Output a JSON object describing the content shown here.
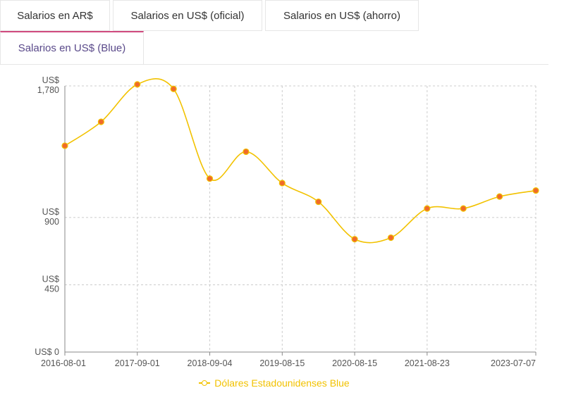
{
  "tabs": [
    {
      "label": "Salarios en AR$",
      "active": false
    },
    {
      "label": "Salarios en US$ (oficial)",
      "active": false
    },
    {
      "label": "Salarios en US$ (ahorro)",
      "active": false
    },
    {
      "label": "Salarios en US$ (Blue)",
      "active": true
    }
  ],
  "colors": {
    "series": "#f2c200",
    "point": "#f06a2a",
    "grid": "#cccccc",
    "axis": "#888888"
  },
  "chart_data": {
    "type": "line",
    "title": "",
    "xlabel": "",
    "ylabel": "",
    "ylim": [
      0,
      1780
    ],
    "y_ticks": [
      {
        "value": 0,
        "line1": "US$ 0",
        "line2": ""
      },
      {
        "value": 450,
        "line1": "US$",
        "line2": "450"
      },
      {
        "value": 900,
        "line1": "US$",
        "line2": "900"
      },
      {
        "value": 1780,
        "line1": "US$",
        "line2": "1,780"
      }
    ],
    "x_tick_labels": [
      "2016-08-01",
      "2017-09-01",
      "2018-09-04",
      "2019-08-15",
      "2020-08-15",
      "2021-08-23",
      "2023-07-07"
    ],
    "x_tick_index": [
      0,
      2,
      4,
      6,
      8,
      10,
      13
    ],
    "series": [
      {
        "name": "Dólares Estadounidenses Blue",
        "values": [
          1380,
          1540,
          1790,
          1760,
          1160,
          1340,
          1130,
          1005,
          755,
          765,
          960,
          960,
          1040,
          1080
        ]
      }
    ],
    "grid": true,
    "legend": "bottom"
  }
}
